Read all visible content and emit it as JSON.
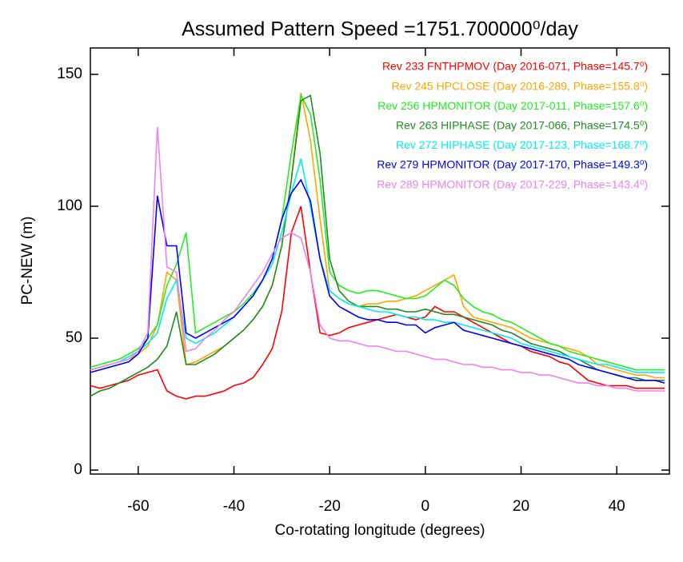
{
  "chart_data": {
    "type": "line",
    "title": "Assumed Pattern Speed =1751.700000⁰/day",
    "xlabel": "Co-rotating longitude (degrees)",
    "ylabel": "PC-NEW (m)",
    "xlim": [
      -70,
      51
    ],
    "ylim": [
      -1.5,
      160
    ],
    "xticks": [
      -60,
      -40,
      -20,
      0,
      20,
      40
    ],
    "yticks": [
      0,
      50,
      100,
      150
    ],
    "legend": "upper right",
    "x": [
      -70,
      -68,
      -66,
      -64,
      -62,
      -60,
      -58,
      -56,
      -54,
      -52,
      -50,
      -48,
      -46,
      -44,
      -42,
      -40,
      -38,
      -36,
      -34,
      -32,
      -30,
      -28,
      -26,
      -24,
      -22,
      -20,
      -18,
      -16,
      -14,
      -12,
      -10,
      -8,
      -6,
      -4,
      -2,
      0,
      2,
      4,
      6,
      8,
      10,
      12,
      14,
      16,
      18,
      20,
      22,
      24,
      26,
      28,
      30,
      32,
      34,
      36,
      38,
      40,
      42,
      44,
      46,
      48,
      50
    ],
    "series": [
      {
        "name": "Rev 233 FNTHPMOV (Day 2016-071, Phase=145.7⁰)",
        "color": "#ff0000",
        "values": [
          32,
          31,
          32,
          33,
          34,
          36,
          37,
          38,
          30,
          28,
          27,
          28,
          28,
          29,
          30,
          32,
          33,
          35,
          40,
          46,
          60,
          90,
          100,
          75,
          52,
          51,
          52,
          54,
          55,
          56,
          57,
          58,
          59,
          58,
          57,
          58,
          62,
          60,
          60,
          58,
          56,
          54,
          52,
          50,
          48,
          47,
          45,
          44,
          43,
          41,
          40,
          37,
          34,
          33,
          32,
          32,
          32,
          31,
          31,
          31,
          31
        ]
      },
      {
        "name": "Rev 245 HPCLOSE (Day 2016-289, Phase=155.8⁰)",
        "color": "#ffa500",
        "values": [
          38,
          39,
          40,
          41,
          42,
          44,
          47,
          55,
          75,
          72,
          40,
          41,
          43,
          45,
          47,
          50,
          53,
          57,
          62,
          70,
          85,
          110,
          143,
          125,
          95,
          68,
          65,
          63,
          62,
          63,
          63,
          64,
          64,
          65,
          66,
          68,
          70,
          72,
          74,
          62,
          58,
          57,
          56,
          55,
          54,
          52,
          50,
          49,
          48,
          47,
          46,
          45,
          43,
          40,
          39,
          38,
          37,
          36,
          36,
          35,
          35
        ]
      },
      {
        "name": "Rev 256 HPMONITOR (Day 2017-011, Phase=157.6⁰)",
        "color": "#22ee22",
        "values": [
          39,
          40,
          41,
          42,
          44,
          46,
          50,
          55,
          70,
          78,
          90,
          52,
          54,
          56,
          58,
          60,
          63,
          67,
          72,
          80,
          95,
          120,
          142,
          135,
          110,
          75,
          70,
          68,
          67,
          68,
          68,
          67,
          66,
          65,
          65,
          66,
          69,
          72,
          70,
          65,
          62,
          60,
          59,
          57,
          56,
          54,
          52,
          50,
          48,
          47,
          45,
          44,
          43,
          42,
          41,
          40,
          39,
          38,
          38,
          38,
          38
        ]
      },
      {
        "name": "Rev 263 HIPHASE (Day 2017-066, Phase=174.5⁰)",
        "color": "#228b22",
        "values": [
          28,
          30,
          31,
          33,
          35,
          37,
          39,
          42,
          47,
          60,
          40,
          40,
          42,
          44,
          47,
          50,
          53,
          57,
          62,
          70,
          85,
          110,
          140,
          142,
          120,
          80,
          68,
          64,
          62,
          62,
          62,
          61,
          61,
          60,
          60,
          61,
          60,
          59,
          59,
          58,
          57,
          56,
          55,
          53,
          52,
          50,
          48,
          47,
          46,
          45,
          43,
          42,
          40,
          38,
          37,
          36,
          35,
          35,
          34,
          34,
          34
        ]
      },
      {
        "name": "Rev 272 HIPHASE (Day 2017-123, Phase=168.7⁰)",
        "color": "#00eeee",
        "values": [
          38,
          39,
          40,
          41,
          43,
          45,
          48,
          52,
          65,
          72,
          50,
          48,
          50,
          52,
          55,
          58,
          62,
          66,
          72,
          78,
          90,
          105,
          118,
          100,
          80,
          68,
          65,
          63,
          62,
          61,
          60,
          60,
          59,
          58,
          58,
          57,
          57,
          56,
          56,
          55,
          54,
          53,
          52,
          51,
          50,
          48,
          47,
          46,
          45,
          44,
          43,
          42,
          41,
          40,
          40,
          39,
          38,
          37,
          37,
          37,
          37
        ]
      },
      {
        "name": "Rev 279 HPMONITOR (Day 2017-170, Phase=149.3⁰)",
        "color": "#0000ff",
        "values": [
          37,
          38,
          39,
          40,
          41,
          44,
          50,
          104,
          85,
          85,
          52,
          50,
          52,
          54,
          56,
          58,
          62,
          66,
          72,
          80,
          95,
          105,
          110,
          102,
          80,
          66,
          62,
          60,
          58,
          57,
          57,
          56,
          56,
          55,
          55,
          52,
          54,
          55,
          56,
          53,
          52,
          51,
          50,
          49,
          48,
          47,
          46,
          45,
          44,
          43,
          42,
          40,
          39,
          38,
          37,
          36,
          35,
          34,
          34,
          34,
          33
        ]
      },
      {
        "name": "Rev 289 HPMONITOR (Day 2017-229, Phase=143.4⁰)",
        "color": "#ee82ee",
        "values": [
          38,
          39,
          40,
          41,
          42,
          45,
          52,
          130,
          77,
          75,
          45,
          46,
          50,
          53,
          57,
          60,
          65,
          70,
          75,
          82,
          88,
          90,
          88,
          75,
          55,
          50,
          49,
          49,
          48,
          47,
          47,
          46,
          45,
          45,
          44,
          43,
          42,
          42,
          41,
          40,
          40,
          39,
          39,
          38,
          38,
          37,
          37,
          36,
          36,
          35,
          34,
          33,
          33,
          32,
          32,
          31,
          31,
          30,
          30,
          30,
          30
        ]
      }
    ]
  }
}
